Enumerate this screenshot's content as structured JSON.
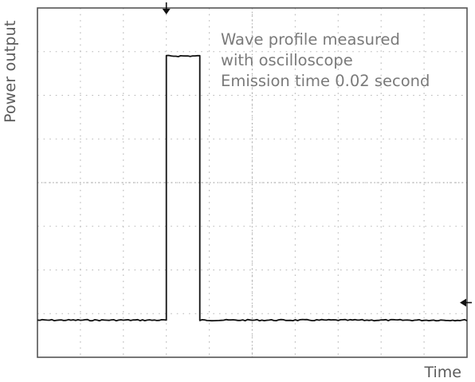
{
  "chart_data": {
    "type": "line",
    "title": "",
    "xlabel": "Time",
    "ylabel": "Power output",
    "annotation": [
      "Wave profile measured",
      "with oscilloscope",
      "Emission time 0.02 second"
    ],
    "grid": true,
    "grid_divisions": {
      "x": 10,
      "y": 8
    },
    "xlim": [
      0,
      10
    ],
    "ylim": [
      0,
      8
    ],
    "series": [
      {
        "values": [
          {
            "x": 0.0,
            "y": 0.85
          },
          {
            "x": 3.0,
            "y": 0.85
          },
          {
            "x": 3.0,
            "y": 6.9
          },
          {
            "x": 3.78,
            "y": 6.9
          },
          {
            "x": 3.78,
            "y": 0.85
          },
          {
            "x": 10.0,
            "y": 0.85
          }
        ]
      }
    ],
    "trigger_markers": [
      "top",
      "right"
    ],
    "colors": {
      "trace": "#111111",
      "frame": "#555555",
      "grid": "#b8b8b8",
      "text": "#5c5c5c"
    }
  }
}
